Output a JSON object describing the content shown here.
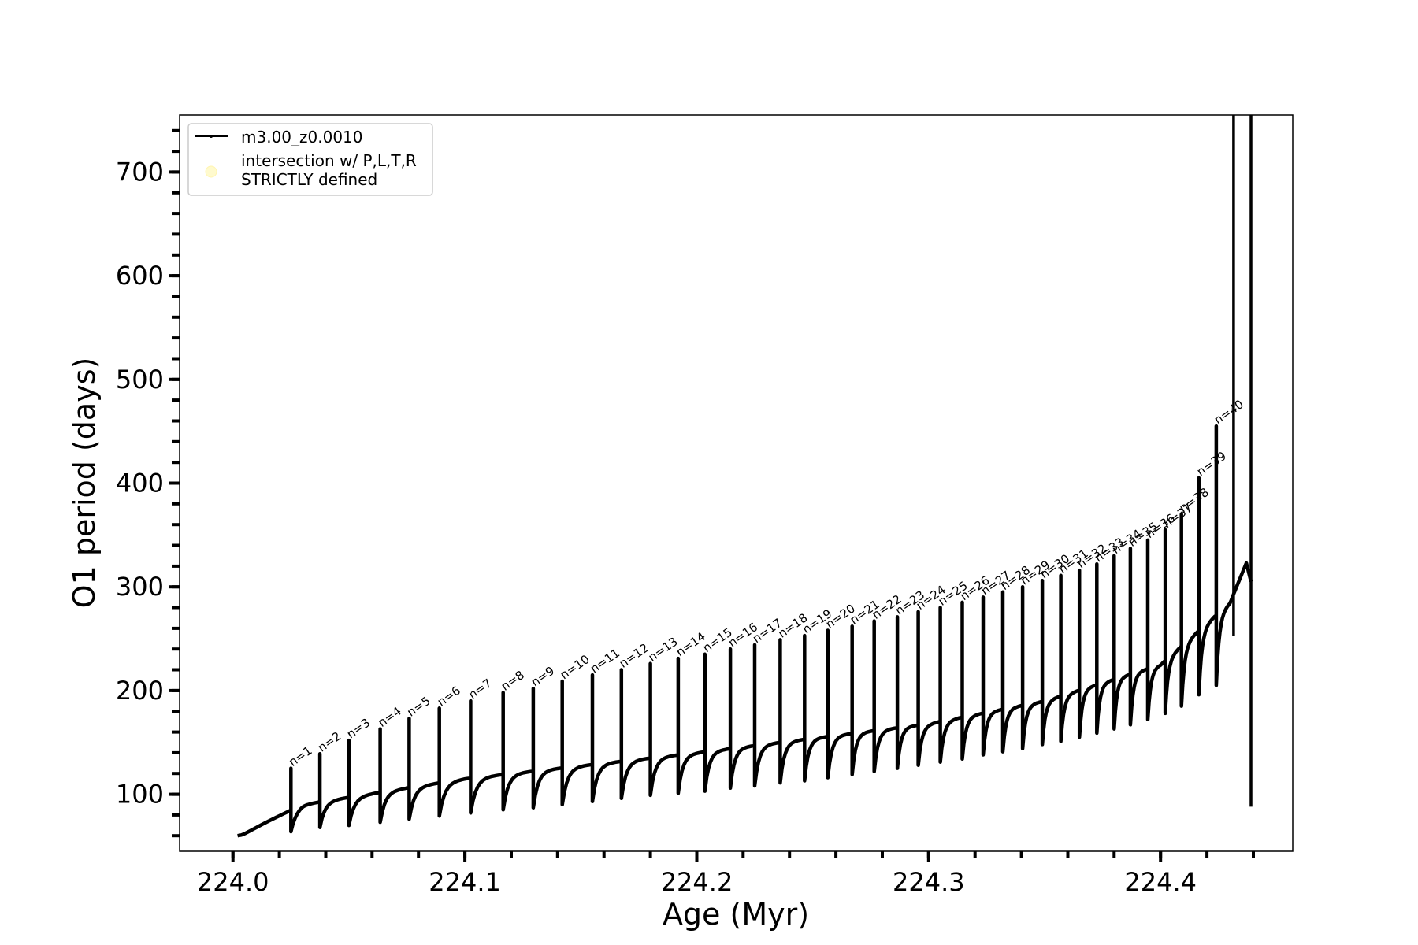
{
  "chart_data": {
    "type": "line",
    "title": "",
    "xlabel": "Age (Myr)",
    "ylabel": "O1 period (days)",
    "xlim": [
      223.977,
      224.457
    ],
    "ylim": [
      45,
      755
    ],
    "x_major_ticks": [
      224.0,
      224.1,
      224.2,
      224.3,
      224.4
    ],
    "x_tick_labels": [
      "224.0",
      "224.1",
      "224.2",
      "224.3",
      "224.4"
    ],
    "x_minor_step": 0.02,
    "y_major_ticks": [
      100,
      200,
      300,
      400,
      500,
      600,
      700
    ],
    "y_tick_labels": [
      "100",
      "200",
      "300",
      "400",
      "500",
      "600",
      "700"
    ],
    "y_minor_step": 20,
    "grid": false,
    "legend": {
      "placement": "upper-left",
      "entries": [
        {
          "label": "m3.00_z0.0010",
          "marker": "line-with-dots",
          "color": "#000000"
        },
        {
          "label": "intersection w/ P,L,T,R\nSTRICTLY defined",
          "marker": "circle",
          "color": "#fffacd"
        }
      ]
    },
    "series": [
      {
        "name": "m3.00_z0.0010",
        "color": "#000000",
        "description": "sawtooth O1 period vs age; each thermal pulse n produces a spike",
        "baseline": [
          [
            224.002,
            60
          ],
          [
            224.03,
            90
          ],
          [
            224.1,
            115
          ],
          [
            224.2,
            140
          ],
          [
            224.3,
            168
          ],
          [
            224.35,
            190
          ],
          [
            224.4,
            225
          ],
          [
            224.43,
            285
          ],
          [
            224.437,
            323
          ]
        ],
        "pulses": [
          {
            "n": 1,
            "x": 224.025,
            "peak": 125,
            "trough": 64
          },
          {
            "n": 2,
            "x": 224.0375,
            "peak": 139,
            "trough": 68
          },
          {
            "n": 3,
            "x": 224.05,
            "peak": 152,
            "trough": 70
          },
          {
            "n": 4,
            "x": 224.0635,
            "peak": 163,
            "trough": 73
          },
          {
            "n": 5,
            "x": 224.076,
            "peak": 173,
            "trough": 76
          },
          {
            "n": 6,
            "x": 224.089,
            "peak": 183,
            "trough": 79
          },
          {
            "n": 7,
            "x": 224.1025,
            "peak": 190,
            "trough": 82
          },
          {
            "n": 8,
            "x": 224.1165,
            "peak": 198,
            "trough": 85
          },
          {
            "n": 9,
            "x": 224.1295,
            "peak": 202,
            "trough": 87
          },
          {
            "n": 10,
            "x": 224.142,
            "peak": 209,
            "trough": 90
          },
          {
            "n": 11,
            "x": 224.155,
            "peak": 215,
            "trough": 93
          },
          {
            "n": 12,
            "x": 224.1675,
            "peak": 220,
            "trough": 96
          },
          {
            "n": 13,
            "x": 224.18,
            "peak": 226,
            "trough": 99
          },
          {
            "n": 14,
            "x": 224.192,
            "peak": 231,
            "trough": 101
          },
          {
            "n": 15,
            "x": 224.2035,
            "peak": 235,
            "trough": 103
          },
          {
            "n": 16,
            "x": 224.2145,
            "peak": 240,
            "trough": 106
          },
          {
            "n": 17,
            "x": 224.225,
            "peak": 244,
            "trough": 108
          },
          {
            "n": 18,
            "x": 224.236,
            "peak": 249,
            "trough": 111
          },
          {
            "n": 19,
            "x": 224.2465,
            "peak": 253,
            "trough": 113
          },
          {
            "n": 20,
            "x": 224.2565,
            "peak": 258,
            "trough": 116
          },
          {
            "n": 21,
            "x": 224.267,
            "peak": 262,
            "trough": 119
          },
          {
            "n": 22,
            "x": 224.2765,
            "peak": 267,
            "trough": 122
          },
          {
            "n": 23,
            "x": 224.2865,
            "peak": 271,
            "trough": 125
          },
          {
            "n": 24,
            "x": 224.2955,
            "peak": 276,
            "trough": 128
          },
          {
            "n": 25,
            "x": 224.305,
            "peak": 280,
            "trough": 131
          },
          {
            "n": 26,
            "x": 224.3145,
            "peak": 285,
            "trough": 134
          },
          {
            "n": 27,
            "x": 224.3235,
            "peak": 290,
            "trough": 138
          },
          {
            "n": 28,
            "x": 224.332,
            "peak": 295,
            "trough": 141
          },
          {
            "n": 29,
            "x": 224.3405,
            "peak": 300,
            "trough": 144
          },
          {
            "n": 30,
            "x": 224.349,
            "peak": 306,
            "trough": 148
          },
          {
            "n": 31,
            "x": 224.357,
            "peak": 311,
            "trough": 151
          },
          {
            "n": 32,
            "x": 224.365,
            "peak": 316,
            "trough": 155
          },
          {
            "n": 33,
            "x": 224.3725,
            "peak": 322,
            "trough": 159
          },
          {
            "n": 34,
            "x": 224.38,
            "peak": 330,
            "trough": 163
          },
          {
            "n": 35,
            "x": 224.387,
            "peak": 337,
            "trough": 167
          },
          {
            "n": 36,
            "x": 224.3945,
            "peak": 345,
            "trough": 172
          },
          {
            "n": 37,
            "x": 224.402,
            "peak": 355,
            "trough": 178
          },
          {
            "n": 38,
            "x": 224.409,
            "peak": 370,
            "trough": 185
          },
          {
            "n": 39,
            "x": 224.4165,
            "peak": 405,
            "trough": 196
          },
          {
            "n": 40,
            "x": 224.424,
            "peak": 455,
            "trough": 205
          }
        ],
        "final_spikes": [
          {
            "x": 224.4315,
            "bottom": 253,
            "top": 755
          },
          {
            "x": 224.439,
            "bottom": 88,
            "top": 755
          }
        ]
      }
    ]
  }
}
